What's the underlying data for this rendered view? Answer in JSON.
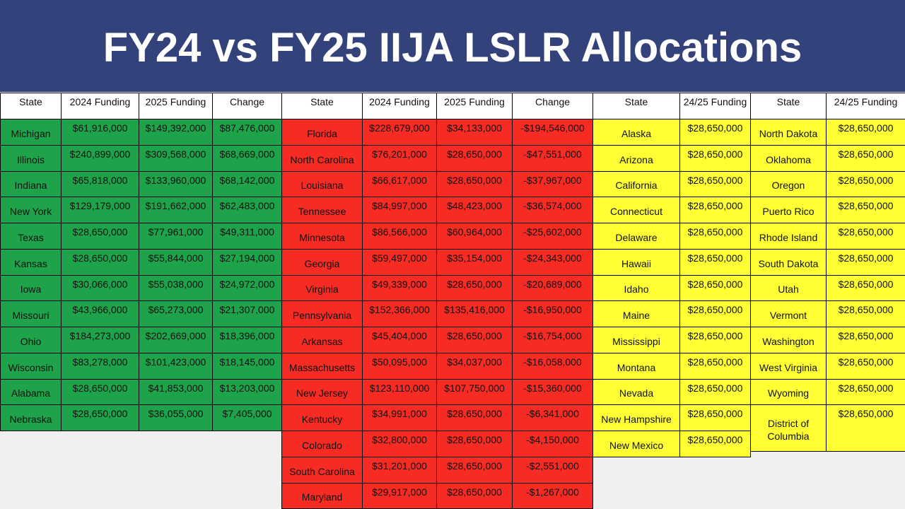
{
  "title": "FY24 vs FY25 IIJA LSLR Allocations",
  "tables": [
    {
      "headers": [
        "State",
        "2024 Funding",
        "2025 Funding",
        "Change"
      ],
      "rows": [
        [
          "Michigan",
          "$61,916,000",
          "$149,392,000",
          "$87,476,000"
        ],
        [
          "Illinois",
          "$240,899,000",
          "$309,568,000",
          "$68,669,000"
        ],
        [
          "Indiana",
          "$65,818,000",
          "$133,960,000",
          "$68,142,000"
        ],
        [
          "New York",
          "$129,179,000",
          "$191,662,000",
          "$62,483,000"
        ],
        [
          "Texas",
          "$28,650,000",
          "$77,961,000",
          "$49,311,000"
        ],
        [
          "Kansas",
          "$28,650,000",
          "$55,844,000",
          "$27,194,000"
        ],
        [
          "Iowa",
          "$30,066,000",
          "$55,038,000",
          "$24,972,000"
        ],
        [
          "Missouri",
          "$43,966,000",
          "$65,273,000",
          "$21,307,000"
        ],
        [
          "Ohio",
          "$184,273,000",
          "$202,669,000",
          "$18,396,000"
        ],
        [
          "Wisconsin",
          "$83,278,000",
          "$101,423,000",
          "$18,145,000"
        ],
        [
          "Alabama",
          "$28,650,000",
          "$41,853,000",
          "$13,203,000"
        ],
        [
          "Nebraska",
          "$28,650,000",
          "$36,055,000",
          "$7,405,000"
        ]
      ]
    },
    {
      "headers": [
        "State",
        "2024 Funding",
        "2025 Funding",
        "Change"
      ],
      "rows": [
        [
          "Florida",
          "$228,679,000",
          "$34,133,000",
          "-$194,546,000"
        ],
        [
          "North Carolina",
          "$76,201,000",
          "$28,650,000",
          "-$47,551,000"
        ],
        [
          "Louisiana",
          "$66,617,000",
          "$28,650,000",
          "-$37,967,000"
        ],
        [
          "Tennessee",
          "$84,997,000",
          "$48,423,000",
          "-$36,574,000"
        ],
        [
          "Minnesota",
          "$86,566,000",
          "$60,964,000",
          "-$25,602,000"
        ],
        [
          "Georgia",
          "$59,497,000",
          "$35,154,000",
          "-$24,343,000"
        ],
        [
          "Virginia",
          "$49,339,000",
          "$28,650,000",
          "-$20,689,000"
        ],
        [
          "Pennsylvania",
          "$152,366,000",
          "$135,416,000",
          "-$16,950,000"
        ],
        [
          "Arkansas",
          "$45,404,000",
          "$28,650,000",
          "-$16,754,000"
        ],
        [
          "Massachusetts",
          "$50,095,000",
          "$34,037,000",
          "-$16,058,000"
        ],
        [
          "New Jersey",
          "$123,110,000",
          "$107,750,000",
          "-$15,360,000"
        ],
        [
          "Kentucky",
          "$34,991,000",
          "$28,650,000",
          "-$6,341,000"
        ],
        [
          "Colorado",
          "$32,800,000",
          "$28,650,000",
          "-$4,150,000"
        ],
        [
          "South Carolina",
          "$31,201,000",
          "$28,650,000",
          "-$2,551,000"
        ],
        [
          "Maryland",
          "$29,917,000",
          "$28,650,000",
          "-$1,267,000"
        ]
      ]
    },
    {
      "headers": [
        "State",
        "24/25 Funding"
      ],
      "rows": [
        [
          "Alaska",
          "$28,650,000"
        ],
        [
          "Arizona",
          "$28,650,000"
        ],
        [
          "California",
          "$28,650,000"
        ],
        [
          "Connecticut",
          "$28,650,000"
        ],
        [
          "Delaware",
          "$28,650,000"
        ],
        [
          "Hawaii",
          "$28,650,000"
        ],
        [
          "Idaho",
          "$28,650,000"
        ],
        [
          "Maine",
          "$28,650,000"
        ],
        [
          "Mississippi",
          "$28,650,000"
        ],
        [
          "Montana",
          "$28,650,000"
        ],
        [
          "Nevada",
          "$28,650,000"
        ],
        [
          "New Hampshire",
          "$28,650,000"
        ],
        [
          "New Mexico",
          "$28,650,000"
        ]
      ]
    },
    {
      "headers": [
        "State",
        "24/25 Funding"
      ],
      "rows": [
        [
          "North Dakota",
          "$28,650,000"
        ],
        [
          "Oklahoma",
          "$28,650,000"
        ],
        [
          "Oregon",
          "$28,650,000"
        ],
        [
          "Puerto Rico",
          "$28,650,000"
        ],
        [
          "Rhode Island",
          "$28,650,000"
        ],
        [
          "South Dakota",
          "$28,650,000"
        ],
        [
          "Utah",
          "$28,650,000"
        ],
        [
          "Vermont",
          "$28,650,000"
        ],
        [
          "Washington",
          "$28,650,000"
        ],
        [
          "West Virginia",
          "$28,650,000"
        ],
        [
          "Wyoming",
          "$28,650,000"
        ],
        [
          "District of Columbia",
          "$28,650,000"
        ]
      ]
    }
  ]
}
